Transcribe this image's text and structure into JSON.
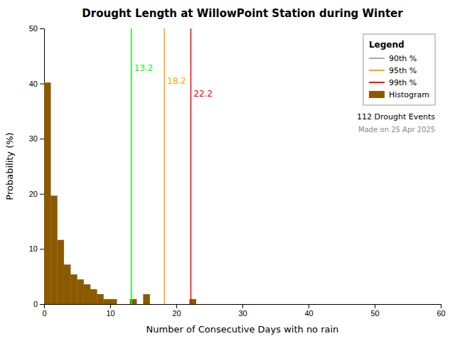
{
  "chart_data": {
    "type": "histogram",
    "title": "Drought Length at WillowPoint Station during Winter",
    "x_label": "Number of Consecutive Days with no rain",
    "y_label": "Probability (%)",
    "bins": [
      0,
      1,
      2,
      3,
      4,
      5,
      6,
      7,
      8,
      9,
      10,
      11,
      12,
      13,
      14,
      15,
      16,
      17,
      18,
      19,
      20,
      21,
      22,
      23,
      24,
      25,
      26,
      27,
      28,
      29,
      30,
      31,
      32,
      33,
      34,
      35,
      36,
      37,
      38,
      39,
      40,
      41,
      42,
      43,
      44,
      45,
      46,
      47,
      48,
      49,
      50,
      51,
      52,
      53,
      54,
      55,
      56,
      57,
      58,
      59,
      60
    ],
    "series": [
      {
        "name": "Histogram",
        "color": "#8B5A00",
        "values": [
          40.18,
          19.64,
          11.61,
          7.14,
          5.36,
          4.46,
          3.57,
          2.68,
          1.79,
          0.89,
          0.89,
          0.0,
          0.0,
          0.89,
          0.0,
          1.79,
          0.0,
          0.0,
          0.0,
          0.0,
          0.0,
          0.0,
          0.89,
          0.0,
          0.0,
          0.0,
          0.0,
          0.0,
          0.0,
          0.0,
          0.0,
          0.0,
          0.0,
          0.0,
          0.0,
          0.0,
          0.0,
          0.0,
          0.0,
          0.0,
          0.0,
          0.0,
          0.0,
          0.0,
          0.0,
          0.0,
          0.0,
          0.0,
          0.0,
          0.0,
          0.0,
          0.0,
          0.0,
          0.0,
          0.0,
          0.0,
          0.0,
          0.0,
          0.0,
          0.0
        ]
      }
    ],
    "reference_lines": [
      {
        "name": "90th %",
        "value": 13.2,
        "color": "#00FF00",
        "legend_color": "#aaaaaa"
      },
      {
        "name": "95th %",
        "value": 18.2,
        "color": "#FFA500",
        "legend_color": "#FFA500"
      },
      {
        "name": "99th %",
        "value": 22.2,
        "color": "#FF0000",
        "legend_color": "#FF0000"
      }
    ],
    "annotations": [
      "112 Drought Events",
      "Made on 25 Apr 2025"
    ],
    "legend_title": "Legend",
    "legend": "upper right",
    "grid": false,
    "xlim": [
      0,
      60
    ],
    "xticks": [
      0,
      10,
      20,
      30,
      40,
      50,
      60
    ],
    "ylim": [
      0,
      50
    ],
    "yticks": [
      0,
      10,
      20,
      30,
      40,
      50
    ]
  }
}
